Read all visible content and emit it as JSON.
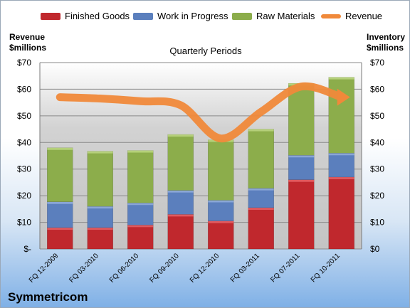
{
  "legend": {
    "finished": "Finished Goods",
    "wip": "Work in Progress",
    "raw": "Raw Materials",
    "revenue": "Revenue"
  },
  "left_axis_title": [
    "Revenue",
    "$millions"
  ],
  "right_axis_title": [
    "Inventory",
    "$millions"
  ],
  "subtitle": "Quarterly Periods",
  "company": "Symmetricom",
  "colors": {
    "finished": "#c0282d",
    "wip": "#5b7fbd",
    "raw": "#8cad4b",
    "revenue": "#f0893a",
    "plot_bg": "#c8c8c8"
  },
  "chart_data": {
    "type": "bar",
    "stacked": true,
    "categories": [
      "FQ 12-2009",
      "FQ 03-2010",
      "FQ 06-2010",
      "FQ 09-2010",
      "FQ 12-2010",
      "FQ 03-2011",
      "FQ 07-2011",
      "FQ 10-2011"
    ],
    "series": [
      {
        "name": "Finished Goods",
        "values": [
          8,
          8,
          9,
          13,
          10.5,
          15.5,
          26,
          27
        ]
      },
      {
        "name": "Work in Progress",
        "values": [
          9.7,
          8,
          8.3,
          9,
          7.8,
          7.3,
          9.2,
          9
        ]
      },
      {
        "name": "Raw Materials",
        "values": [
          20.3,
          20.7,
          19.7,
          21,
          22.7,
          22.2,
          27,
          28.5
        ]
      }
    ],
    "line_series": {
      "name": "Revenue",
      "values": [
        57,
        56.5,
        55.5,
        54,
        41.5,
        51.5,
        61,
        57
      ]
    },
    "y_left": {
      "min": 0,
      "max": 70,
      "ticks": [
        "$-",
        "$10",
        "$20",
        "$30",
        "$40",
        "$50",
        "$60",
        "$70"
      ]
    },
    "y_right": {
      "min": 0,
      "max": 70,
      "ticks": [
        "$0",
        "$10",
        "$20",
        "$30",
        "$40",
        "$50",
        "$60",
        "$70"
      ]
    },
    "grid": true,
    "legend_position": "top"
  }
}
